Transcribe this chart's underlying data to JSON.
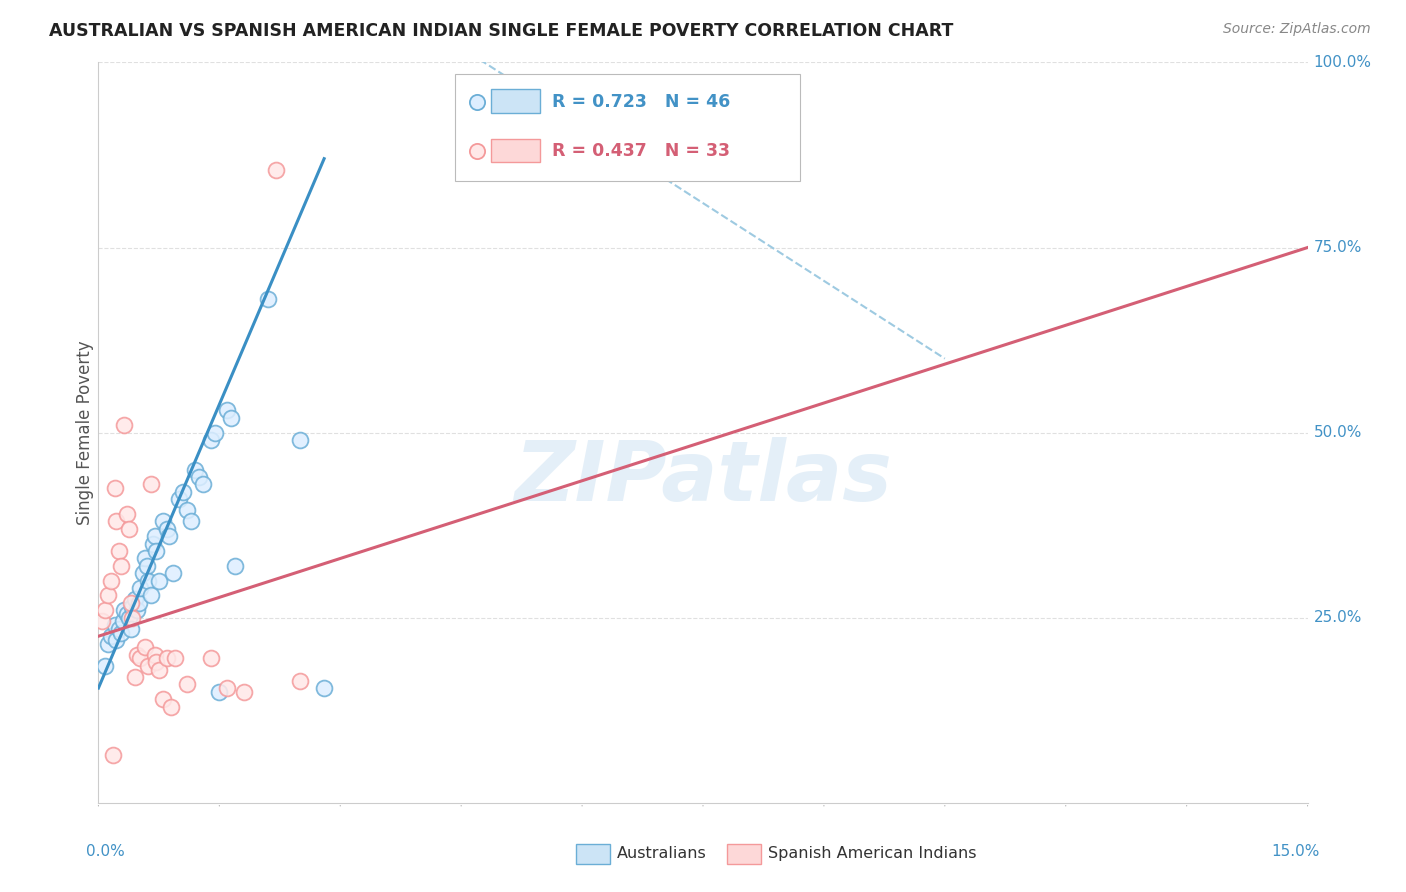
{
  "title": "AUSTRALIAN VS SPANISH AMERICAN INDIAN SINGLE FEMALE POVERTY CORRELATION CHART",
  "source": "Source: ZipAtlas.com",
  "ylabel": "Single Female Poverty",
  "watermark": "ZIPatlas",
  "blue_color": "#6baed6",
  "pink_color": "#f4999a",
  "blue_line_color": "#3a8fc4",
  "pink_line_color": "#d45f75",
  "dashed_line_color": "#9ecae1",
  "background_color": "#ffffff",
  "grid_color": "#e0e0e0",
  "xmin": 0,
  "xmax": 15,
  "ymin": 0,
  "ymax": 1.0,
  "xtick_labels": [
    "0.0%",
    "15.0%"
  ],
  "ytick_labels": [
    "100.0%",
    "75.0%",
    "50.0%",
    "25.0%"
  ],
  "ytick_vals": [
    1.0,
    0.75,
    0.5,
    0.25
  ],
  "legend1_label": "R = 0.723   N = 46",
  "legend2_label": "R = 0.437   N = 33",
  "legend1_color": "#4292c6",
  "legend2_color": "#d45f75",
  "bottom_legend": [
    "Australians",
    "Spanish American Indians"
  ],
  "aus_points": [
    [
      0.08,
      0.185
    ],
    [
      0.12,
      0.215
    ],
    [
      0.15,
      0.225
    ],
    [
      0.2,
      0.24
    ],
    [
      0.22,
      0.22
    ],
    [
      0.25,
      0.235
    ],
    [
      0.28,
      0.23
    ],
    [
      0.3,
      0.245
    ],
    [
      0.32,
      0.26
    ],
    [
      0.35,
      0.255
    ],
    [
      0.38,
      0.25
    ],
    [
      0.4,
      0.235
    ],
    [
      0.42,
      0.265
    ],
    [
      0.45,
      0.275
    ],
    [
      0.48,
      0.26
    ],
    [
      0.5,
      0.27
    ],
    [
      0.52,
      0.29
    ],
    [
      0.55,
      0.31
    ],
    [
      0.58,
      0.33
    ],
    [
      0.6,
      0.32
    ],
    [
      0.62,
      0.3
    ],
    [
      0.65,
      0.28
    ],
    [
      0.68,
      0.35
    ],
    [
      0.7,
      0.36
    ],
    [
      0.72,
      0.34
    ],
    [
      0.75,
      0.3
    ],
    [
      0.8,
      0.38
    ],
    [
      0.85,
      0.37
    ],
    [
      0.88,
      0.36
    ],
    [
      0.92,
      0.31
    ],
    [
      1.0,
      0.41
    ],
    [
      1.05,
      0.42
    ],
    [
      1.1,
      0.395
    ],
    [
      1.15,
      0.38
    ],
    [
      1.2,
      0.45
    ],
    [
      1.25,
      0.44
    ],
    [
      1.3,
      0.43
    ],
    [
      1.4,
      0.49
    ],
    [
      1.45,
      0.5
    ],
    [
      1.5,
      0.15
    ],
    [
      1.6,
      0.53
    ],
    [
      1.65,
      0.52
    ],
    [
      1.7,
      0.32
    ],
    [
      2.1,
      0.68
    ],
    [
      2.5,
      0.49
    ],
    [
      2.8,
      0.155
    ]
  ],
  "span_points": [
    [
      0.05,
      0.245
    ],
    [
      0.08,
      0.26
    ],
    [
      0.12,
      0.28
    ],
    [
      0.15,
      0.3
    ],
    [
      0.18,
      0.065
    ],
    [
      0.2,
      0.425
    ],
    [
      0.22,
      0.38
    ],
    [
      0.25,
      0.34
    ],
    [
      0.28,
      0.32
    ],
    [
      0.32,
      0.51
    ],
    [
      0.35,
      0.39
    ],
    [
      0.38,
      0.37
    ],
    [
      0.4,
      0.27
    ],
    [
      0.42,
      0.25
    ],
    [
      0.45,
      0.17
    ],
    [
      0.48,
      0.2
    ],
    [
      0.52,
      0.195
    ],
    [
      0.58,
      0.21
    ],
    [
      0.62,
      0.185
    ],
    [
      0.65,
      0.43
    ],
    [
      0.7,
      0.2
    ],
    [
      0.72,
      0.19
    ],
    [
      0.75,
      0.18
    ],
    [
      0.8,
      0.14
    ],
    [
      0.85,
      0.195
    ],
    [
      0.9,
      0.13
    ],
    [
      0.95,
      0.195
    ],
    [
      1.1,
      0.16
    ],
    [
      1.4,
      0.195
    ],
    [
      1.6,
      0.155
    ],
    [
      1.8,
      0.15
    ],
    [
      2.2,
      0.855
    ],
    [
      2.5,
      0.165
    ]
  ],
  "aus_line": {
    "x0": 0.0,
    "y0": 0.155,
    "x1": 2.8,
    "y1": 0.87
  },
  "span_line": {
    "x0": 0.0,
    "y0": 0.225,
    "x1": 15.0,
    "y1": 0.75
  },
  "diag_line": {
    "x0": 4.5,
    "y0": 1.02,
    "x1": 10.5,
    "y1": 0.6
  }
}
